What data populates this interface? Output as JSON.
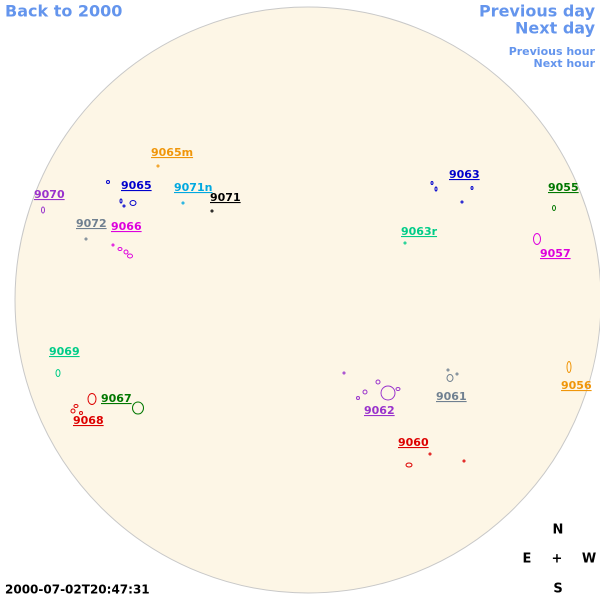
{
  "nav": {
    "back": "Back to 2000",
    "previous_day": "Previous day",
    "next_day": "Next day",
    "previous_hour": "Previous hour",
    "next_hour": "Next hour"
  },
  "compass": {
    "north": "N",
    "east": "E",
    "center": "+",
    "west": "W",
    "south": "S"
  },
  "timestamp": "2000-07-02T20:47:31",
  "regions": [
    {
      "label": "9065m",
      "color": "#f0960a"
    },
    {
      "label": "9070",
      "color": "#9932cc"
    },
    {
      "label": "9065",
      "color": "#0000cc"
    },
    {
      "label": "9071n",
      "color": "#00a8e0"
    },
    {
      "label": "9071",
      "color": "#000000"
    },
    {
      "label": "9072",
      "color": "#708090"
    },
    {
      "label": "9066",
      "color": "#dd00dd"
    },
    {
      "label": "9063",
      "color": "#0000cc"
    },
    {
      "label": "9055",
      "color": "#007700"
    },
    {
      "label": "9063r",
      "color": "#00cc88"
    },
    {
      "label": "9057",
      "color": "#dd00dd"
    },
    {
      "label": "9069",
      "color": "#00cc88"
    },
    {
      "label": "9067",
      "color": "#007700"
    },
    {
      "label": "9068",
      "color": "#dd0000"
    },
    {
      "label": "9062",
      "color": "#9932cc"
    },
    {
      "label": "9061",
      "color": "#708090"
    },
    {
      "label": "9056",
      "color": "#f0960a"
    },
    {
      "label": "9060",
      "color": "#dd0000"
    }
  ]
}
